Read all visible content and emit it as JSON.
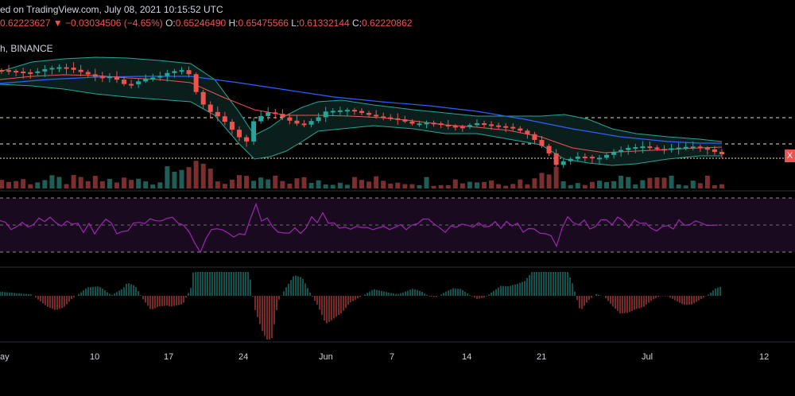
{
  "header": {
    "published": "ed on TradingView.com, July 08, 2021 10:15:52 UTC",
    "last_price": "0.62223627",
    "change_arrow": "▼",
    "change": "−0.03034506 (−4.65%)",
    "open_label": "O:",
    "open_value": "0.65246490",
    "high_label": "H:",
    "high_value": "0.65475566",
    "low_label": "L:",
    "low_value": "0.61332144",
    "close_label": "C:",
    "close_value": "0.62220862",
    "symbol_suffix": "h, BINANCE"
  },
  "price_tag": "X",
  "x_axis": [
    "ay",
    "10",
    "17",
    "24",
    "Jun",
    "7",
    "14",
    "21",
    "Jul",
    "12"
  ],
  "colors": {
    "up": "#26a69a",
    "down": "#ef5350",
    "bollinger": "#26a69a",
    "ma_blue": "#2962ff",
    "ma_red": "#ef5350",
    "rsi": "#9c27b0",
    "rsi_band": "#1a0a20",
    "level_line": "#e6e6a0",
    "axis_text": "#d1d4dc"
  }
}
